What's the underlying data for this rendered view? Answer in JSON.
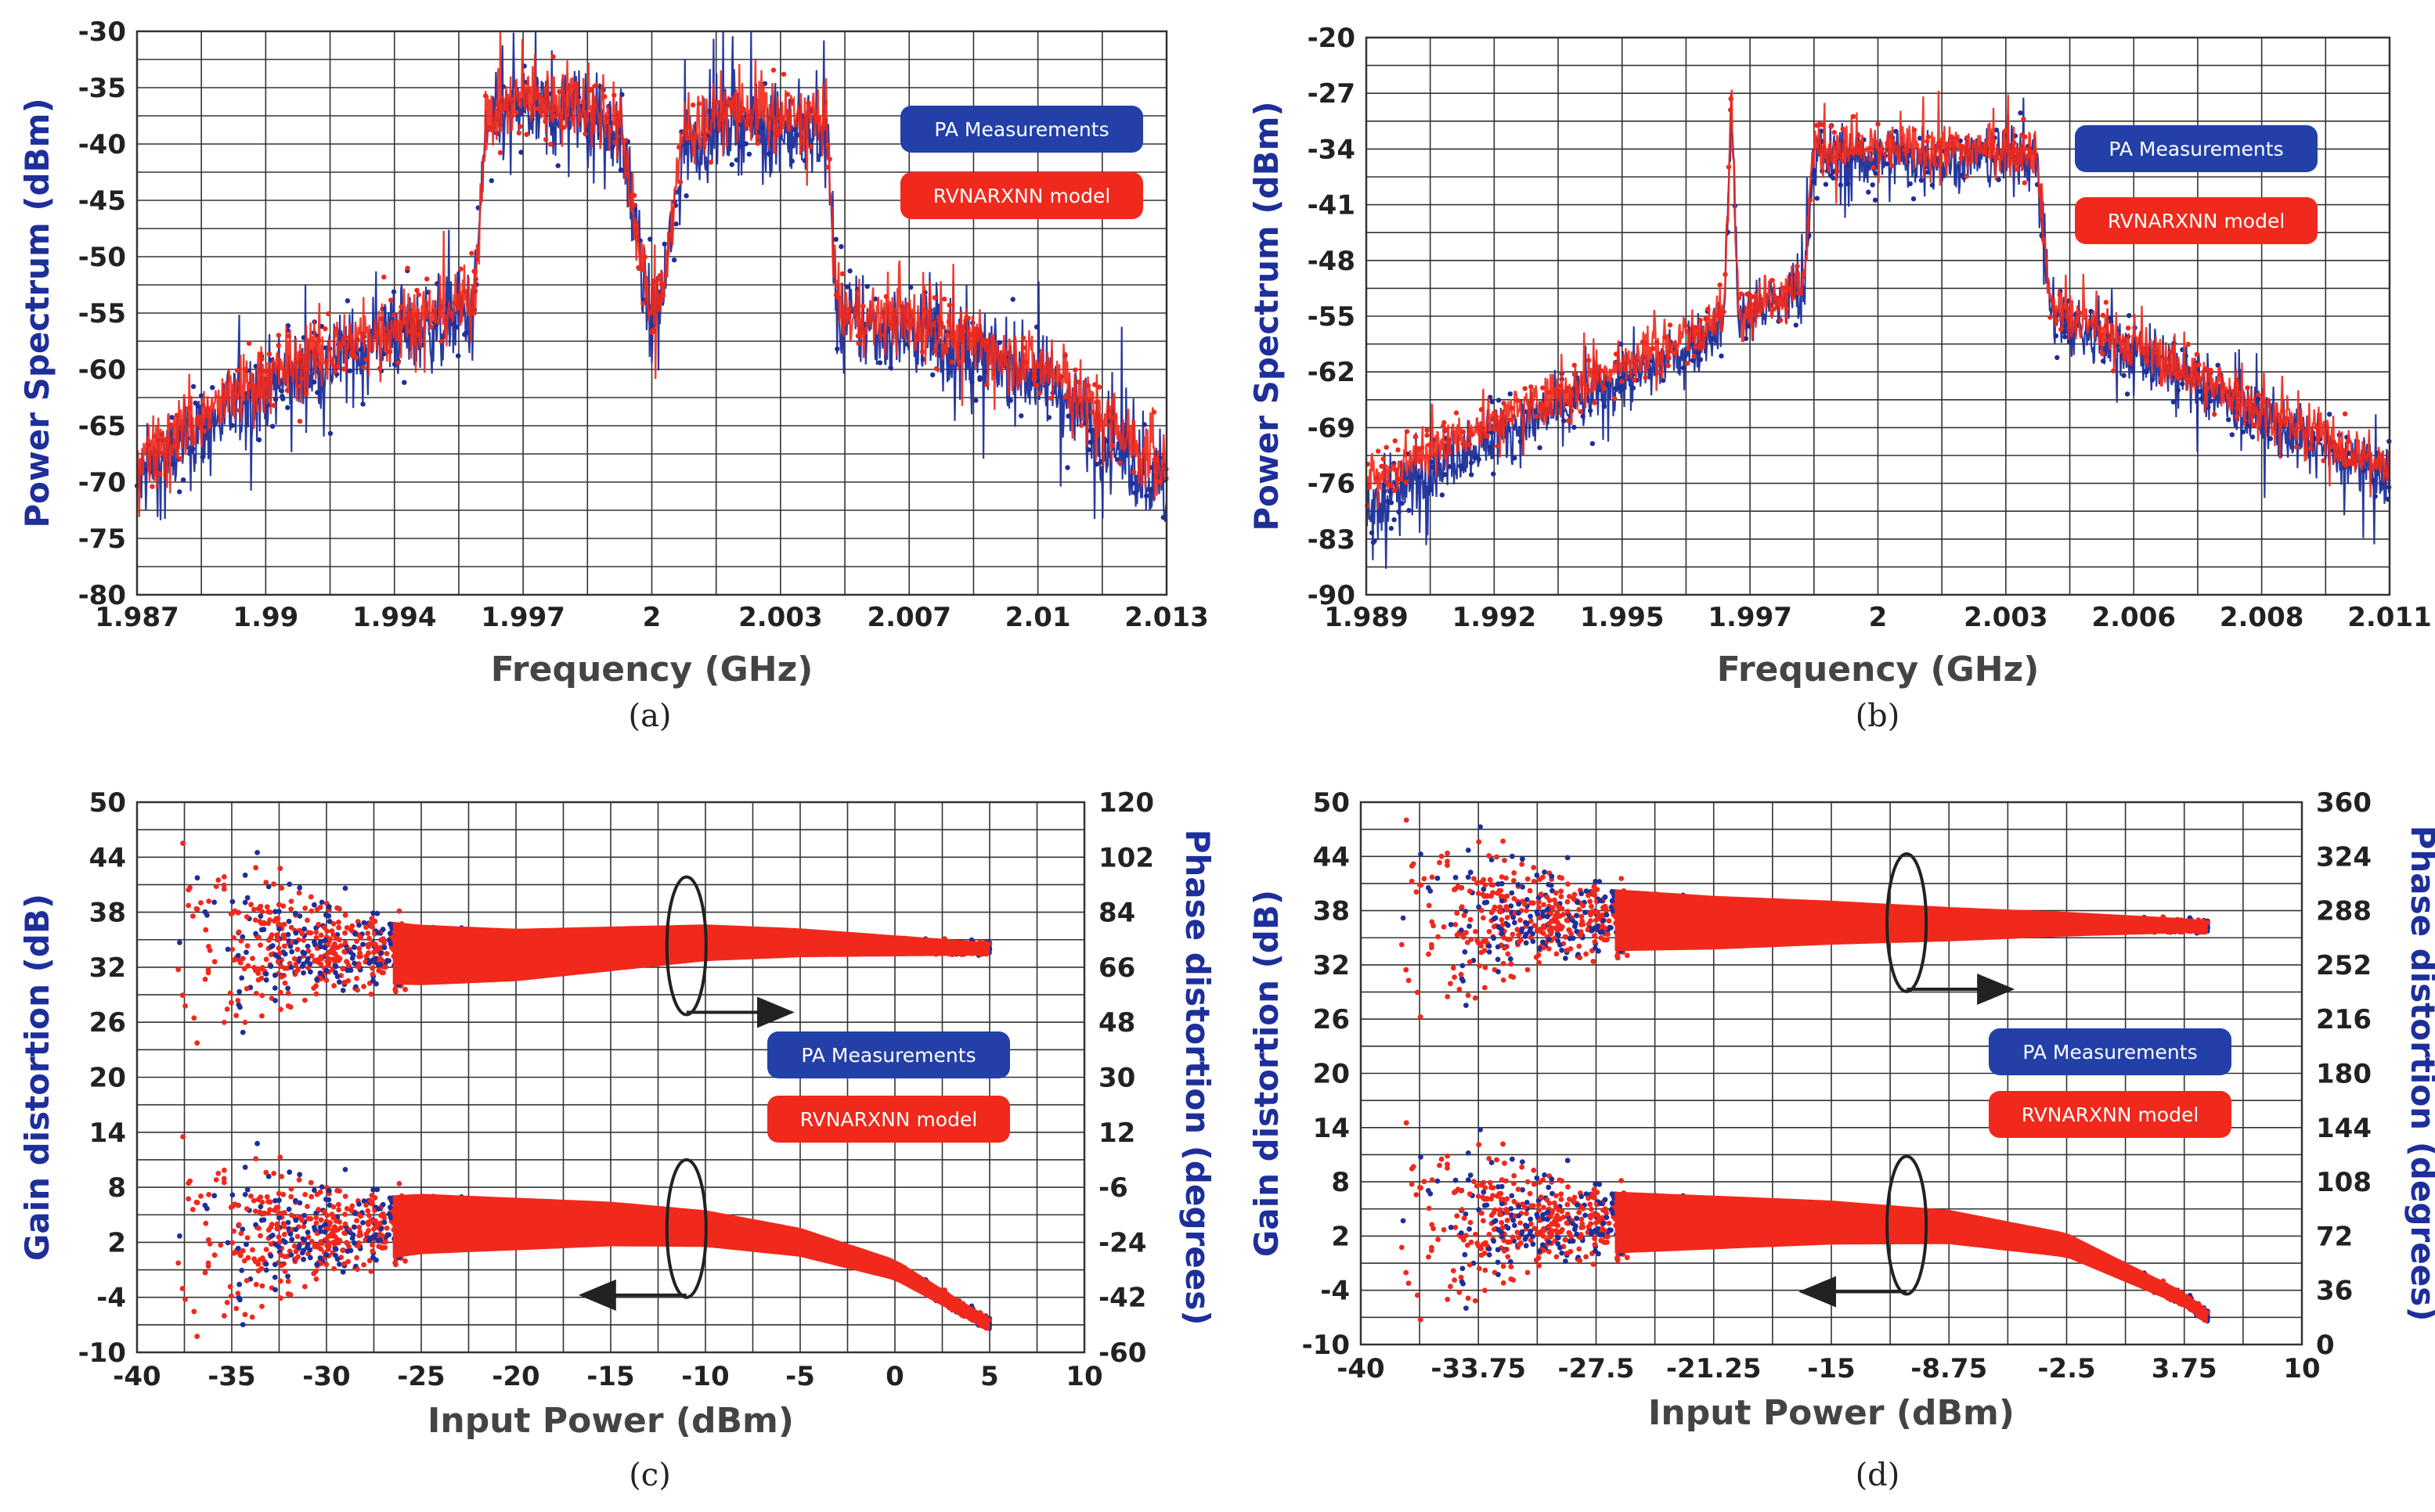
{
  "chart_data": [
    {
      "id": "a",
      "type": "line",
      "caption": "(a)",
      "xlabel": "Frequency (GHz)",
      "ylabel": "Power Spectrum (dBm)",
      "xlim": [
        1.987,
        2.013
      ],
      "ylim": [
        -80,
        -30
      ],
      "x_ticks": [
        "1.987",
        "1.99",
        "1.994",
        "1.997",
        "2",
        "2.003",
        "2.007",
        "2.01",
        "2.013"
      ],
      "y_ticks": [
        "-30",
        "-35",
        "-40",
        "-45",
        "-50",
        "-55",
        "-60",
        "-65",
        "-70",
        "-75",
        "-80"
      ],
      "legend": [
        "PA Measurements",
        "RVNARXNN model"
      ],
      "series": [
        {
          "name": "PA Measurements",
          "color": "#1e2f9a",
          "x": [
            1.987,
            1.99,
            1.9935,
            1.9955,
            1.9958,
            1.9965,
            1.998,
            1.9992,
            1.9998,
            2.0,
            2.0003,
            2.0008,
            2.002,
            2.0038,
            2.0044,
            2.0047,
            2.007,
            2.01,
            2.013
          ],
          "y": [
            -70,
            -62,
            -57,
            -55,
            -39,
            -37,
            -37,
            -39,
            -53,
            -56,
            -53,
            -40,
            -38,
            -39,
            -39,
            -56,
            -57,
            -61,
            -71
          ]
        },
        {
          "name": "RVNARXNN model",
          "color": "#f0291c",
          "x": [
            1.987,
            1.99,
            1.9935,
            1.9955,
            1.9958,
            1.9965,
            1.998,
            1.9992,
            1.9998,
            2.0,
            2.0003,
            2.0008,
            2.002,
            2.0038,
            2.0044,
            2.0047,
            2.007,
            2.01,
            2.013
          ],
          "y": [
            -68,
            -61,
            -56,
            -54,
            -38,
            -36,
            -36,
            -38,
            -52,
            -55,
            -52,
            -39,
            -37,
            -38,
            -38,
            -55,
            -56,
            -60,
            -69
          ]
        }
      ]
    },
    {
      "id": "b",
      "type": "line",
      "caption": "(b)",
      "xlabel": "Frequency (GHz)",
      "ylabel": "Power Spectrum (dBm)",
      "xlim": [
        1.989,
        2.011
      ],
      "ylim": [
        -90,
        -20
      ],
      "x_ticks": [
        "1.989",
        "1.992",
        "1.995",
        "1.997",
        "2",
        "2.003",
        "2.006",
        "2.008",
        "2.011"
      ],
      "y_ticks": [
        "-20",
        "-27",
        "-34",
        "-41",
        "-48",
        "-55",
        "-62",
        "-69",
        "-76",
        "-83",
        "-90"
      ],
      "legend": [
        "PA Measurements",
        "RVNARXNN model"
      ],
      "series": [
        {
          "name": "PA Measurements",
          "color": "#1e2f9a",
          "x": [
            1.989,
            1.991,
            1.993,
            1.995,
            1.9964,
            1.9967,
            1.99685,
            1.997,
            1.9975,
            1.998,
            1.9984,
            1.9986,
            2.0,
            2.002,
            2.0034,
            2.0037,
            2.004,
            2.006,
            2.008,
            2.011
          ],
          "y": [
            -80,
            -72,
            -67,
            -62,
            -57,
            -55,
            -28,
            -55,
            -54,
            -53,
            -52,
            -35,
            -35,
            -35,
            -35,
            -54,
            -56,
            -61,
            -67,
            -76
          ]
        },
        {
          "name": "RVNARXNN model",
          "color": "#f0291c",
          "x": [
            1.989,
            1.991,
            1.993,
            1.995,
            1.9964,
            1.9967,
            1.99685,
            1.997,
            1.9975,
            1.998,
            1.9984,
            1.9986,
            2.0,
            2.002,
            2.0034,
            2.0037,
            2.004,
            2.006,
            2.008,
            2.011
          ],
          "y": [
            -76,
            -70,
            -65,
            -60,
            -56,
            -54,
            -27,
            -54,
            -53,
            -52,
            -51,
            -34,
            -34,
            -34,
            -34,
            -53,
            -55,
            -60,
            -66,
            -74
          ]
        }
      ]
    },
    {
      "id": "c",
      "type": "scatter",
      "caption": "(c)",
      "xlabel": "Input Power (dBm)",
      "ylabel": "Gain distortion (dB)",
      "ylabel_right": "Phase distortion (degrees)",
      "xlim": [
        -40,
        10
      ],
      "ylim": [
        -10,
        50
      ],
      "ylim_right": [
        -60,
        120
      ],
      "x_ticks": [
        "-40",
        "-35",
        "-30",
        "-25",
        "-20",
        "-15",
        "-10",
        "-5",
        "0",
        "5",
        "10"
      ],
      "y_ticks": [
        "50",
        "44",
        "38",
        "32",
        "26",
        "20",
        "14",
        "8",
        "2",
        "-4",
        "-10"
      ],
      "y_ticks_right": [
        "120",
        "102",
        "84",
        "66",
        "48",
        "30",
        "12",
        "-6",
        "-24",
        "-42",
        "-60"
      ],
      "legend": [
        "PA Measurements",
        "RVNARXNN model"
      ],
      "series": [
        {
          "name": "Phase distortion",
          "axis": "right",
          "color": "#f0291c",
          "x": [
            -35,
            -30,
            -25,
            -20,
            -15,
            -10,
            -5,
            0,
            5
          ],
          "y": [
            75,
            72,
            70,
            70,
            72,
            74,
            74,
            73,
            72
          ]
        },
        {
          "name": "Gain distortion",
          "axis": "left",
          "color": "#f0291c",
          "x": [
            -35,
            -30,
            -25,
            -20,
            -15,
            -10,
            -5,
            0,
            5
          ],
          "y": [
            3,
            3,
            4,
            4,
            4,
            3.5,
            2,
            -1,
            -7
          ]
        }
      ]
    },
    {
      "id": "d",
      "type": "scatter",
      "caption": "(d)",
      "xlabel": "Input Power (dBm)",
      "ylabel": "Gain distortion (dB)",
      "ylabel_right": "Phase distortion (degrees)",
      "xlim": [
        -40,
        10
      ],
      "ylim": [
        -10,
        50
      ],
      "ylim_right": [
        0,
        360
      ],
      "x_ticks": [
        "-40",
        "-33.75",
        "-27.5",
        "-21.25",
        "-15",
        "-8.75",
        "-2.5",
        "3.75",
        "10"
      ],
      "y_ticks": [
        "50",
        "44",
        "38",
        "32",
        "26",
        "20",
        "14",
        "8",
        "2",
        "-4",
        "-10"
      ],
      "y_ticks_right": [
        "360",
        "324",
        "288",
        "252",
        "216",
        "180",
        "144",
        "108",
        "72",
        "36",
        "0"
      ],
      "legend": [
        "PA Measurements",
        "RVNARXNN model"
      ],
      "series": [
        {
          "name": "Phase distortion",
          "axis": "right",
          "color": "#f0291c",
          "x": [
            -33.75,
            -27.5,
            -21.25,
            -15,
            -8.75,
            -2.5,
            3.75,
            5
          ],
          "y": [
            285,
            282,
            280,
            280,
            279,
            279,
            278,
            277
          ]
        },
        {
          "name": "Gain distortion",
          "axis": "left",
          "color": "#f0291c",
          "x": [
            -33.75,
            -27.5,
            -21.25,
            -15,
            -8.75,
            -2.5,
            3.75,
            5
          ],
          "y": [
            4,
            3.5,
            3.5,
            3.5,
            3,
            1,
            -5,
            -7
          ]
        }
      ]
    }
  ]
}
